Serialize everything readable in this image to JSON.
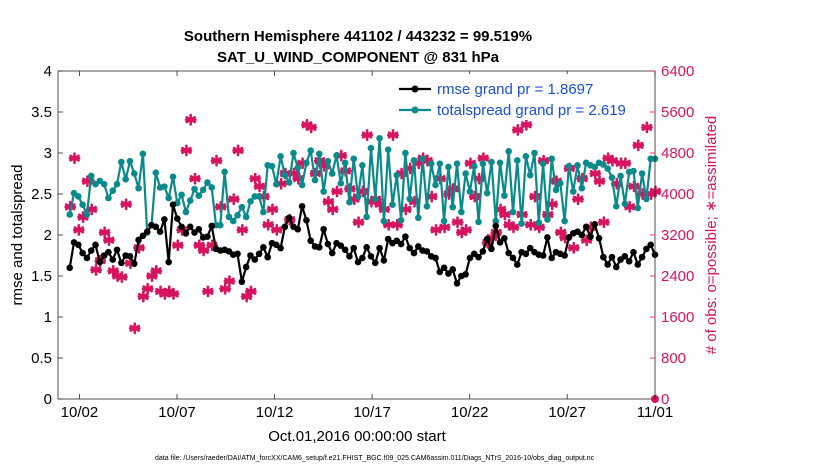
{
  "chart_data": {
    "type": "line",
    "title_line1": "Southern Hemisphere 441102 / 443232 = 99.519%",
    "title_line2": "SAT_U_WIND_COMPONENT @ 831 hPa",
    "xlabel": "Oct.01,2016 00:00:00 start",
    "ylabel_left": "rmse and totalspread",
    "ylabel_right": "# of obs: o=possible; ∗=assimilated",
    "footer": "data file: /Users/raeder/DAI/ATM_forcXX/CAM6_setup/f.e21.FHIST_BGC.f09_025.CAM6assim.011/Diags_NTrS_2016-10/obs_diag_output.nc",
    "x_range": [
      0.4,
      31.0
    ],
    "ylim_left": [
      0,
      4
    ],
    "ylim_right": [
      0,
      6400
    ],
    "x_tick_positions": [
      1.5,
      6.5,
      11.5,
      16.5,
      21.5,
      26.5,
      31.0
    ],
    "x_tick_labels": [
      "10/02",
      "10/07",
      "10/12",
      "10/17",
      "10/22",
      "10/27",
      "11/01"
    ],
    "y_ticks_left": [
      "0",
      "0.5",
      "1",
      "1.5",
      "2",
      "2.5",
      "3",
      "3.5",
      "4"
    ],
    "y_ticks_right": [
      "0",
      "800",
      "1600",
      "2400",
      "3200",
      "4000",
      "4800",
      "5600",
      "6400"
    ],
    "legend": [
      {
        "name": "rmse grand pr = 1.8697",
        "color": "#000000"
      },
      {
        "name": "totalspread grand pr = 2.619",
        "color": "#0a8a8a"
      }
    ],
    "series": [
      {
        "name": "rmse",
        "color": "#000000",
        "values": [
          1.6,
          1.91,
          1.88,
          1.78,
          1.72,
          1.81,
          1.88,
          1.67,
          1.75,
          1.79,
          1.7,
          1.82,
          1.66,
          1.75,
          1.74,
          1.65,
          1.94,
          1.99,
          2.04,
          2.12,
          2.1,
          2.04,
          2.19,
          1.67,
          2.37,
          2.2,
          2.1,
          2.02,
          2.1,
          2.03,
          2.07,
          1.97,
          1.98,
          2.11,
          1.83,
          1.81,
          1.82,
          1.8,
          1.76,
          1.77,
          1.43,
          1.61,
          1.75,
          1.7,
          1.77,
          1.85,
          1.73,
          1.9,
          1.88,
          1.84,
          2.1,
          2.21,
          2.1,
          2.07,
          2.35,
          2.18,
          1.93,
          1.86,
          1.85,
          2.07,
          1.89,
          1.78,
          1.9,
          1.87,
          1.82,
          1.74,
          1.84,
          1.67,
          1.72,
          1.85,
          1.74,
          1.66,
          1.84,
          1.69,
          1.95,
          1.9,
          1.93,
          1.89,
          1.98,
          1.84,
          1.78,
          1.86,
          1.81,
          1.8,
          1.74,
          1.72,
          1.55,
          1.6,
          1.53,
          1.58,
          1.41,
          1.5,
          1.52,
          1.72,
          1.77,
          1.73,
          1.8,
          1.95,
          1.83,
          2.11,
          1.91,
          1.96,
          1.78,
          1.72,
          1.64,
          1.79,
          1.77,
          1.84,
          1.79,
          1.76,
          1.75,
          1.97,
          1.72,
          1.79,
          1.77,
          1.75,
          1.97,
          2.02,
          2.04,
          2.0,
          2.1,
          1.98,
          2.13,
          1.96,
          1.73,
          1.64,
          1.73,
          1.61,
          1.7,
          1.74,
          1.68,
          1.79,
          1.64,
          1.73,
          1.83,
          1.88,
          1.76
        ]
      },
      {
        "name": "totalspread",
        "color": "#0a8a8a",
        "values": [
          2.25,
          2.51,
          2.47,
          2.37,
          2.25,
          2.72,
          2.62,
          2.66,
          2.62,
          2.45,
          2.54,
          2.62,
          2.89,
          2.68,
          2.9,
          2.75,
          2.57,
          2.99,
          2.03,
          2.12,
          2.76,
          2.58,
          2.59,
          2.45,
          2.71,
          2.39,
          2.49,
          2.28,
          2.42,
          2.56,
          2.48,
          2.55,
          2.64,
          2.58,
          2.12,
          2.12,
          2.77,
          2.22,
          2.17,
          2.24,
          2.34,
          2.22,
          2.41,
          2.47,
          2.47,
          2.28,
          2.85,
          2.84,
          2.62,
          2.96,
          2.73,
          2.64,
          3.0,
          2.82,
          2.61,
          2.88,
          3.03,
          2.67,
          2.99,
          2.53,
          2.9,
          2.75,
          2.97,
          2.63,
          2.88,
          2.4,
          2.93,
          2.47,
          2.85,
          2.22,
          3.06,
          2.44,
          3.18,
          2.17,
          3.04,
          2.37,
          2.73,
          2.18,
          3.0,
          2.44,
          2.91,
          2.21,
          2.93,
          2.35,
          2.87,
          2.61,
          2.87,
          2.17,
          2.83,
          2.34,
          2.87,
          2.28,
          2.75,
          2.53,
          2.84,
          2.16,
          2.87,
          2.51,
          2.89,
          2.17,
          2.88,
          2.48,
          3.02,
          2.28,
          2.91,
          2.14,
          2.96,
          2.73,
          3.0,
          2.15,
          2.87,
          2.19,
          2.93,
          2.55,
          2.63,
          2.17,
          2.84,
          2.53,
          2.85,
          2.57,
          2.88,
          2.85,
          2.83,
          2.88,
          2.86,
          2.81,
          2.7,
          2.35,
          2.72,
          2.38,
          2.77,
          2.78,
          2.33,
          2.75,
          2.44,
          2.93,
          2.93
        ]
      },
      {
        "name": "obs_assimilated",
        "color": "#d6145f",
        "values": [
          3750,
          4700,
          3300,
          3550,
          4250,
          3700,
          2520,
          2700,
          3250,
          3100,
          2500,
          2400,
          2380,
          3800,
          2650,
          1380,
          2950,
          2000,
          2150,
          2400,
          2500,
          2100,
          2050,
          2100,
          2050,
          3000,
          3300,
          4850,
          5450,
          4300,
          3000,
          2900,
          2100,
          3000,
          4650,
          3750,
          2150,
          2300,
          3900,
          4850,
          3300,
          2000,
          2100,
          4300,
          4150,
          3950,
          3400,
          3700,
          3300,
          4200,
          4400,
          3500,
          4400,
          4300,
          4600,
          5350,
          5300,
          4400,
          4650,
          4550,
          3850,
          3700,
          4050,
          4750,
          4450,
          4100,
          3900,
          3450,
          4050,
          5150,
          3850,
          3900,
          3800,
          3700,
          3400,
          5150,
          3400,
          4400,
          3700,
          4500,
          3850,
          4600,
          4700,
          4650,
          3950,
          3300,
          4300,
          3350,
          4000,
          4100,
          3450,
          3250,
          3300,
          4600,
          3950,
          4300,
          4700,
          3050,
          3150,
          3250,
          3700,
          3600,
          3400,
          3350,
          5250,
          3600,
          5350,
          3400,
          3950,
          3350,
          4650,
          3600,
          3800,
          4250,
          3250,
          3150,
          4500,
          2950,
          3900,
          4300,
          3100,
          3350,
          4400,
          4250,
          3450,
          4700,
          4650,
          4200,
          4600,
          4600,
          3750,
          4150,
          4950,
          4000,
          5300,
          4000,
          4050
        ]
      }
    ]
  }
}
